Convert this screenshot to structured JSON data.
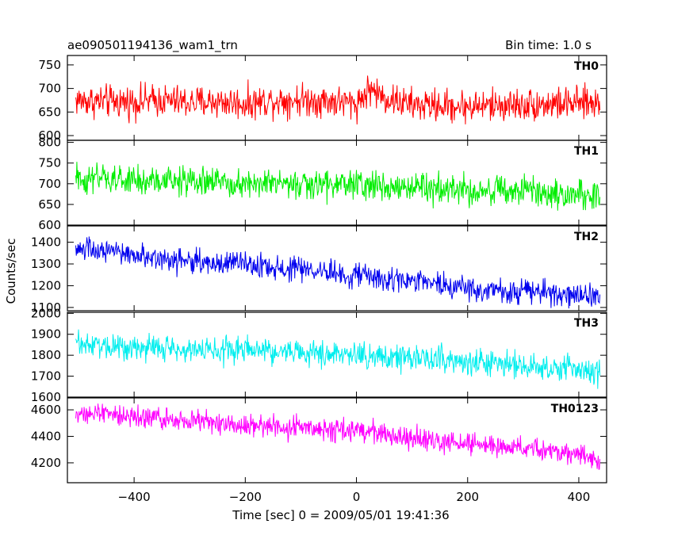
{
  "chart_data": {
    "type": "line",
    "title": "ae090501194136_wam1_trn",
    "subtitle": "Bin time: 1.0 s",
    "xlabel": "Time [sec] 0 = 2009/05/01 19:41:36",
    "ylabel": "Counts/sec",
    "xlim": [
      -520,
      450
    ],
    "x_range": [
      -505,
      438
    ],
    "x_ticks": [
      -400,
      -200,
      0,
      200,
      400
    ],
    "x_tick_labels": [
      "−400",
      "−200",
      "0",
      "200",
      "400"
    ],
    "grid": false,
    "series": [
      {
        "name": "TH0",
        "color": "#ff0000",
        "ylim": [
          590,
          770
        ],
        "y_ticks": [
          600,
          650,
          700,
          750
        ],
        "noise": 30,
        "trend": [
          [
            -505,
            675
          ],
          [
            -450,
            672
          ],
          [
            -400,
            672
          ],
          [
            -350,
            675
          ],
          [
            -300,
            670
          ],
          [
            -250,
            672
          ],
          [
            -200,
            668
          ],
          [
            -150,
            675
          ],
          [
            -100,
            676
          ],
          [
            -50,
            674
          ],
          [
            0,
            668
          ],
          [
            25,
            700
          ],
          [
            50,
            680
          ],
          [
            100,
            665
          ],
          [
            200,
            662
          ],
          [
            300,
            666
          ],
          [
            400,
            668
          ],
          [
            438,
            670
          ]
        ]
      },
      {
        "name": "TH1",
        "color": "#00ee00",
        "ylim": [
          600,
          805
        ],
        "y_ticks": [
          600,
          650,
          700,
          750,
          800
        ],
        "noise": 32,
        "trend": [
          [
            -505,
            712
          ],
          [
            -400,
            706
          ],
          [
            -300,
            706
          ],
          [
            -200,
            703
          ],
          [
            -100,
            696
          ],
          [
            0,
            699
          ],
          [
            100,
            690
          ],
          [
            200,
            686
          ],
          [
            300,
            680
          ],
          [
            400,
            673
          ],
          [
            438,
            671
          ]
        ]
      },
      {
        "name": "TH2",
        "color": "#0000ee",
        "ylim": [
          1085,
          1475
        ],
        "y_ticks": [
          1100,
          1200,
          1300,
          1400
        ],
        "noise": 50,
        "trend": [
          [
            -505,
            1370
          ],
          [
            -400,
            1342
          ],
          [
            -300,
            1312
          ],
          [
            -200,
            1296
          ],
          [
            -100,
            1272
          ],
          [
            0,
            1250
          ],
          [
            100,
            1215
          ],
          [
            200,
            1192
          ],
          [
            300,
            1172
          ],
          [
            400,
            1152
          ],
          [
            438,
            1142
          ]
        ]
      },
      {
        "name": "TH3",
        "color": "#00eeee",
        "ylim": [
          1600,
          2005
        ],
        "y_ticks": [
          1600,
          1700,
          1800,
          1900,
          2000
        ],
        "noise": 55,
        "trend": [
          [
            -505,
            1858
          ],
          [
            -400,
            1838
          ],
          [
            -300,
            1830
          ],
          [
            -200,
            1822
          ],
          [
            -100,
            1810
          ],
          [
            0,
            1802
          ],
          [
            100,
            1788
          ],
          [
            200,
            1772
          ],
          [
            300,
            1752
          ],
          [
            400,
            1732
          ],
          [
            438,
            1722
          ]
        ]
      },
      {
        "name": "TH0123",
        "color": "#ff00ff",
        "ylim": [
          4050,
          4690
        ],
        "y_ticks": [
          4200,
          4400,
          4600
        ],
        "noise": 75,
        "trend": [
          [
            -505,
            4590
          ],
          [
            -400,
            4548
          ],
          [
            -300,
            4520
          ],
          [
            -200,
            4492
          ],
          [
            -100,
            4458
          ],
          [
            0,
            4442
          ],
          [
            100,
            4382
          ],
          [
            200,
            4342
          ],
          [
            300,
            4308
          ],
          [
            400,
            4258
          ],
          [
            438,
            4222
          ]
        ]
      }
    ]
  }
}
